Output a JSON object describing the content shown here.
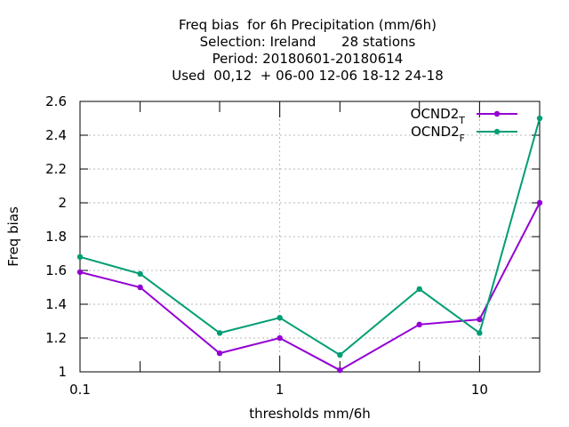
{
  "chart_data": {
    "type": "line",
    "title_lines": [
      "Freq bias  for 6h Precipitation (mm/6h)",
      "Selection: Ireland      28 stations",
      "Period: 20180601-20180614",
      "Used  00,12  + 06-00 12-06 18-12 24-18"
    ],
    "xlabel": "thresholds mm/6h",
    "ylabel": "Freq bias",
    "x_scale": "log",
    "xlim": [
      0.1,
      20
    ],
    "ylim": [
      1,
      2.6
    ],
    "x_ticks": [
      {
        "value": 0.1,
        "label": "0.1"
      },
      {
        "value": 1,
        "label": "1"
      },
      {
        "value": 10,
        "label": "10"
      }
    ],
    "x_minor_ticks": [
      0.2,
      0.5,
      2,
      5,
      20
    ],
    "y_ticks": [
      {
        "value": 1,
        "label": "1"
      },
      {
        "value": 1.2,
        "label": "1.2"
      },
      {
        "value": 1.4,
        "label": "1.4"
      },
      {
        "value": 1.6,
        "label": "1.6"
      },
      {
        "value": 1.8,
        "label": "1.8"
      },
      {
        "value": 2,
        "label": "2"
      },
      {
        "value": 2.2,
        "label": "2.2"
      },
      {
        "value": 2.4,
        "label": "2.4"
      },
      {
        "value": 2.6,
        "label": "2.6"
      }
    ],
    "grid": true,
    "legend_position": "top-right",
    "x": [
      0.1,
      0.2,
      0.5,
      1,
      2,
      5,
      10,
      20
    ],
    "series": [
      {
        "name": "OCND2",
        "subscript": "T",
        "color": "#9400d3",
        "values": [
          1.59,
          1.5,
          1.11,
          1.2,
          1.01,
          1.28,
          1.31,
          2.0
        ]
      },
      {
        "name": "OCND2",
        "subscript": "F",
        "color": "#009e73",
        "values": [
          1.68,
          1.58,
          1.23,
          1.32,
          1.1,
          1.49,
          1.23,
          2.5
        ]
      }
    ]
  }
}
